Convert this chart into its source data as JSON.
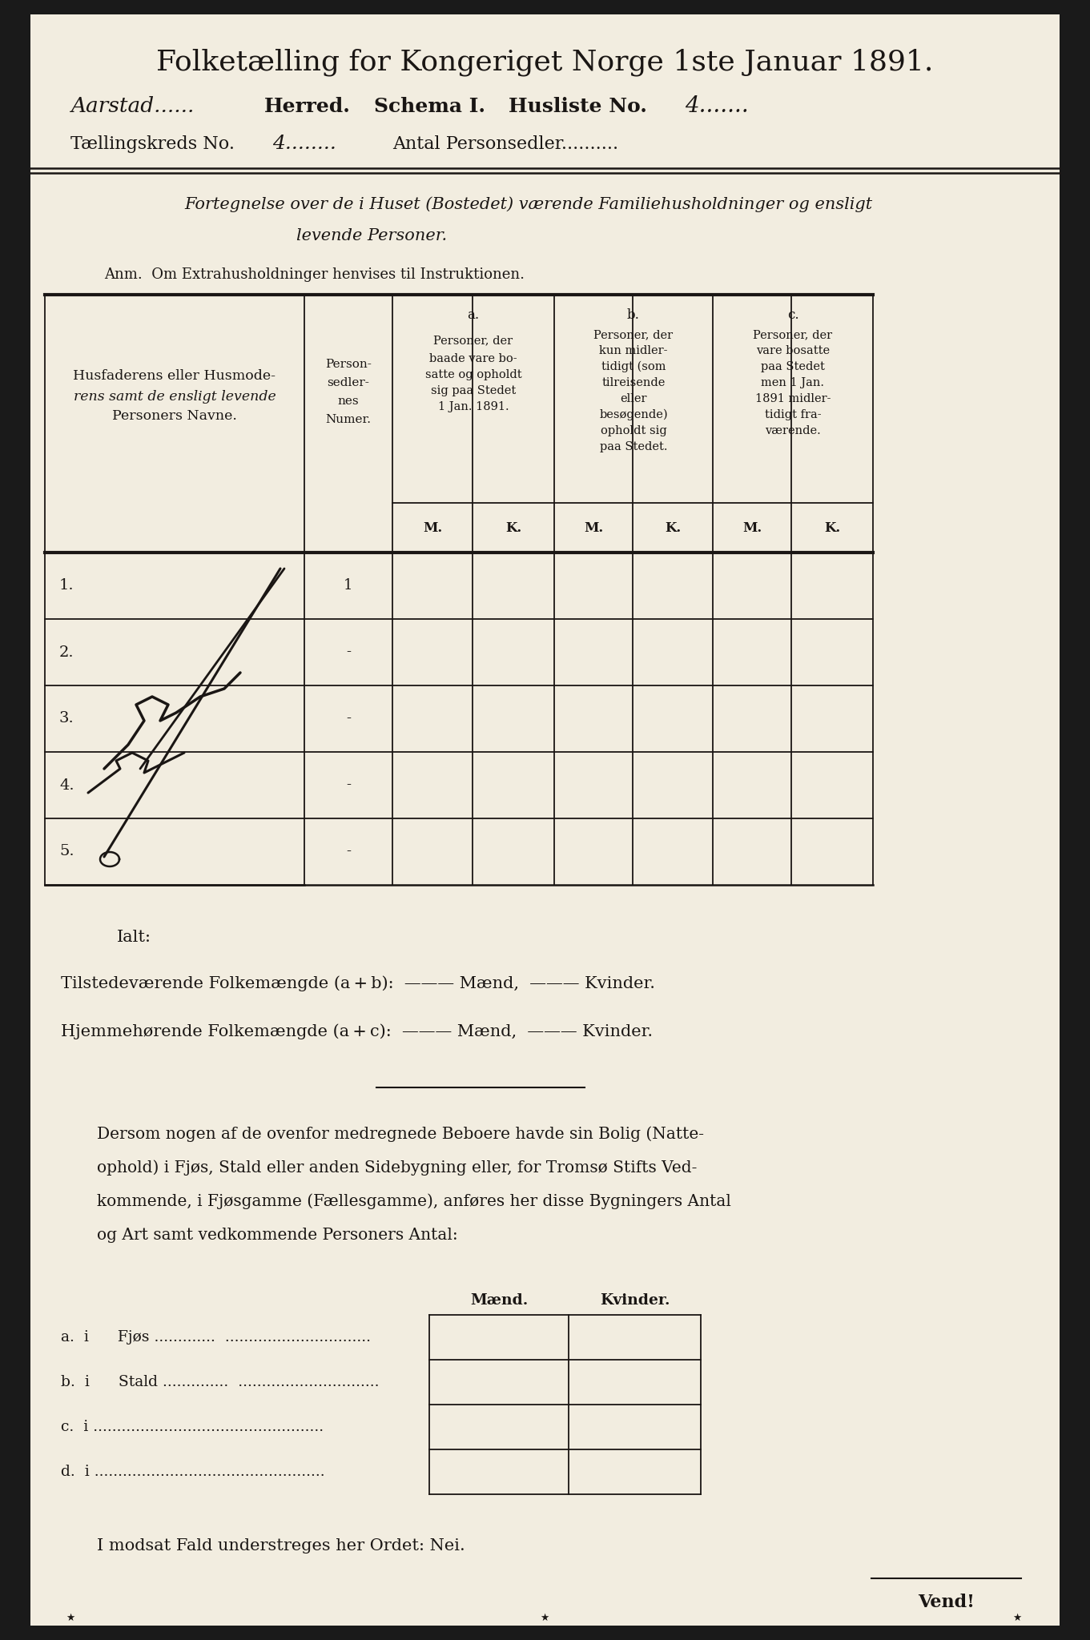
{
  "bg_color": "#1a1a1a",
  "paper_color": "#f2ede0",
  "text_color": "#1a1614",
  "title": "Folketælling for Kongeriget Norge 1ste Januar 1891.",
  "handwritten_place": "Aarstad",
  "herred_label": "Herred.",
  "schema_label": "Schema I.",
  "husliste_label": "Husliste No.",
  "husliste_no": "4",
  "taellingskreds_label": "Tællingskreds No.",
  "taellingskreds_no": "4",
  "antal_label": "Antal Personsedler",
  "subtitle_line1": "Fortegnelse over de i Huset (Bostedet) værende Familiehusholdninger og ensligt",
  "subtitle_line2": "levende Personer.",
  "anm_text": "Anm.  Om Extrahusholdninger henvises til Instruktionen.",
  "mk_labels": [
    "M.",
    "K.",
    "M.",
    "K.",
    "M.",
    "K."
  ],
  "row_numbers": [
    "1.",
    "2.",
    "3.",
    "4.",
    "5."
  ],
  "row_person_nums": [
    "1",
    "-",
    "-",
    "-",
    "-"
  ],
  "ialt_label": "Ialt:",
  "tilstede_text": "Tilstedeværende Folkemængde (a",
  "tilstede_text2": "b):  ——— Mænd,  ——— Kvinder.",
  "hjemme_text": "Hjemmehørende Folkemængde (a",
  "hjemme_text2": "c):  ——— Mænd,  ——— Kvinder.",
  "para_lines": [
    "Dersom nogen af de ovenfor medregnede Beboere havde sin Bolig (Natte-",
    "ophold) i Fjøs, Stald eller anden Sidebygning eller, for Tromsø Stifts Ved-",
    "kommende, i Fjøsgamme (Fællesgamme), anføres her disse Bygningers Antal",
    "og Art samt vedkommende Personers Antal:"
  ],
  "maend_header": "Mænd.",
  "kvinder_header": "Kvinder.",
  "bottom_rows_left": [
    "a.  i      Fjøs .............  ...............................",
    "b.  i      Stald ..............  ..............................",
    "c.  i .................................................",
    "d.  i ................................................."
  ],
  "final_text": "I modsat Fald understreges her Ordet: Nei.",
  "vend_text": "Vend!"
}
